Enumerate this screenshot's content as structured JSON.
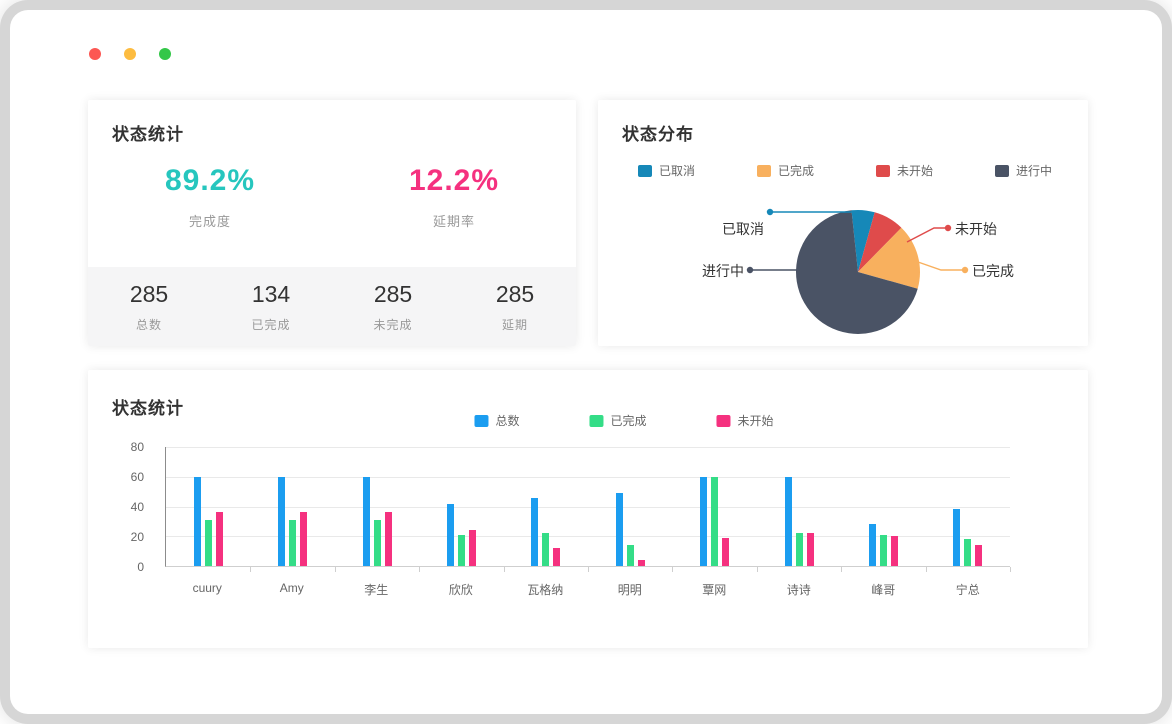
{
  "window": {
    "controls": {
      "close_color": "#fc5753",
      "minimize_color": "#fdbc40",
      "fullscreen_color": "#33c748"
    }
  },
  "stats_card": {
    "title": "状态统计",
    "primary": [
      {
        "value": "89.2%",
        "label": "完成度",
        "color": "#26c6be"
      },
      {
        "value": "12.2%",
        "label": "延期率",
        "color": "#f5317f"
      }
    ],
    "secondary": [
      {
        "value": "285",
        "label": "总数"
      },
      {
        "value": "134",
        "label": "已完成"
      },
      {
        "value": "285",
        "label": "未完成"
      },
      {
        "value": "285",
        "label": "延期"
      }
    ]
  },
  "pie_card": {
    "title": "状态分布",
    "legend_order": [
      "已取消",
      "已完成",
      "未开始",
      "进行中"
    ]
  },
  "bar_card": {
    "title": "状态统计"
  },
  "chart_data": [
    {
      "type": "pie",
      "title": "状态分布",
      "slices": [
        {
          "label": "已取消",
          "value": 6,
          "color": "#1688b8"
        },
        {
          "label": "未开始",
          "value": 8,
          "color": "#df4b4b"
        },
        {
          "label": "已完成",
          "value": 17,
          "color": "#f8b05e"
        },
        {
          "label": "进行中",
          "value": 69,
          "color": "#4a5365"
        }
      ],
      "legend_position": "top",
      "callout_labels": true
    },
    {
      "type": "bar",
      "title": "状态统计",
      "categories": [
        "cuury",
        "Amy",
        "李生",
        "欣欣",
        "瓦格纳",
        "明明",
        "覃网",
        "诗诗",
        "峰哥",
        "宁总"
      ],
      "series": [
        {
          "name": "总数",
          "color": "#1b9df0",
          "values": [
            60,
            60,
            60,
            42,
            46,
            49,
            60,
            60,
            28,
            38
          ]
        },
        {
          "name": "已完成",
          "color": "#34dd87",
          "values": [
            31,
            31,
            31,
            21,
            22,
            14,
            60,
            22,
            21,
            18
          ]
        },
        {
          "name": "未开始",
          "color": "#f5317f",
          "values": [
            36,
            36,
            36,
            24,
            12,
            4,
            19,
            22,
            20,
            14
          ]
        }
      ],
      "ylim": [
        0,
        80
      ],
      "yticks": [
        0,
        20,
        40,
        60,
        80
      ],
      "grid": true,
      "legend_position": "top"
    }
  ]
}
